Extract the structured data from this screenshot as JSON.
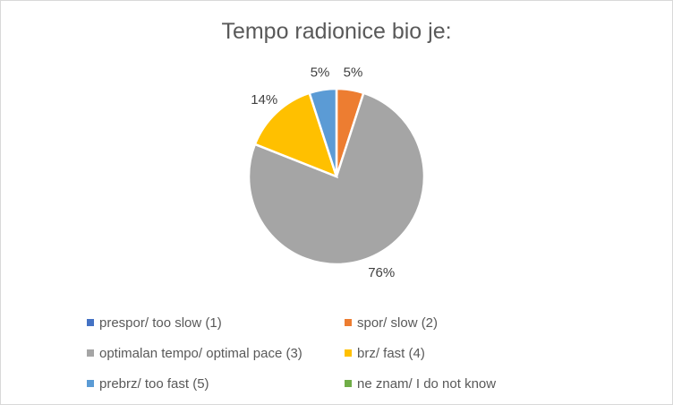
{
  "chart_data": {
    "type": "pie",
    "title": "Tempo radionice bio je:",
    "categories": [
      "prespor/ too slow (1)",
      "spor/ slow (2)",
      "optimalan tempo/ optimal pace (3)",
      "brz/ fast (4)",
      "prebrz/ too fast (5)",
      "ne znam/ I do not know"
    ],
    "values": [
      0,
      5,
      76,
      14,
      5,
      0
    ],
    "data_labels": [
      "",
      "5%",
      "76%",
      "14%",
      "5%",
      ""
    ],
    "colors": [
      "#4472c4",
      "#ed7d31",
      "#a5a5a5",
      "#ffc000",
      "#5b9bd5",
      "#70ad47"
    ],
    "legend_position": "bottom"
  }
}
